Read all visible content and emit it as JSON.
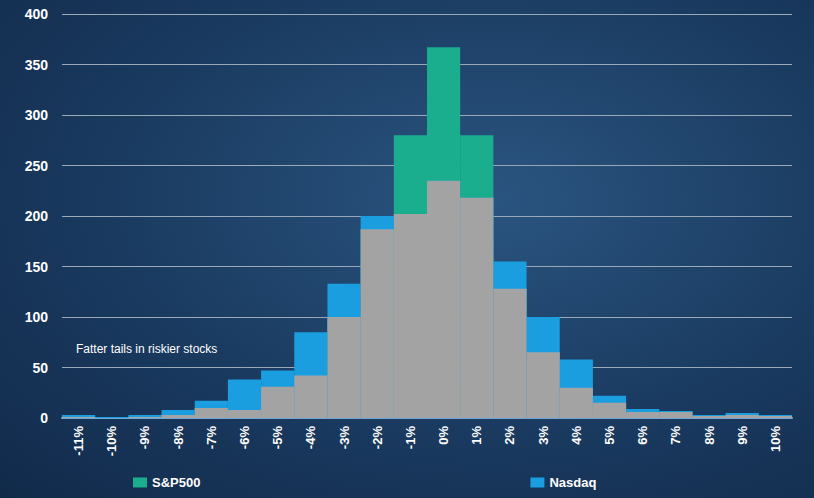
{
  "chart_data": {
    "type": "bar",
    "categories": [
      "-11%",
      "-10%",
      "-9%",
      "-8%",
      "-7%",
      "-6%",
      "-5%",
      "-4%",
      "-3%",
      "-2%",
      "-1%",
      "0%",
      "1%",
      "2%",
      "3%",
      "4%",
      "5%",
      "6%",
      "7%",
      "8%",
      "9%",
      "10%"
    ],
    "series": [
      {
        "name": "S&P500",
        "color": "#1aae8f",
        "values": [
          1,
          0,
          1,
          3,
          10,
          8,
          31,
          42,
          100,
          187,
          280,
          367,
          280,
          128,
          65,
          30,
          15,
          6,
          6,
          2,
          3,
          2
        ]
      },
      {
        "name": "Nasdaq",
        "color": "#1a9ee0",
        "values": [
          3,
          1,
          3,
          8,
          17,
          38,
          47,
          85,
          133,
          200,
          202,
          235,
          218,
          155,
          100,
          58,
          22,
          9,
          7,
          3,
          5,
          3
        ]
      }
    ],
    "ylim": [
      0,
      400
    ],
    "yticks": [
      0,
      50,
      100,
      150,
      200,
      250,
      300,
      350,
      400
    ],
    "grid": true,
    "legend": "bottom",
    "annotation": "Fatter tails in riskier stocks"
  }
}
